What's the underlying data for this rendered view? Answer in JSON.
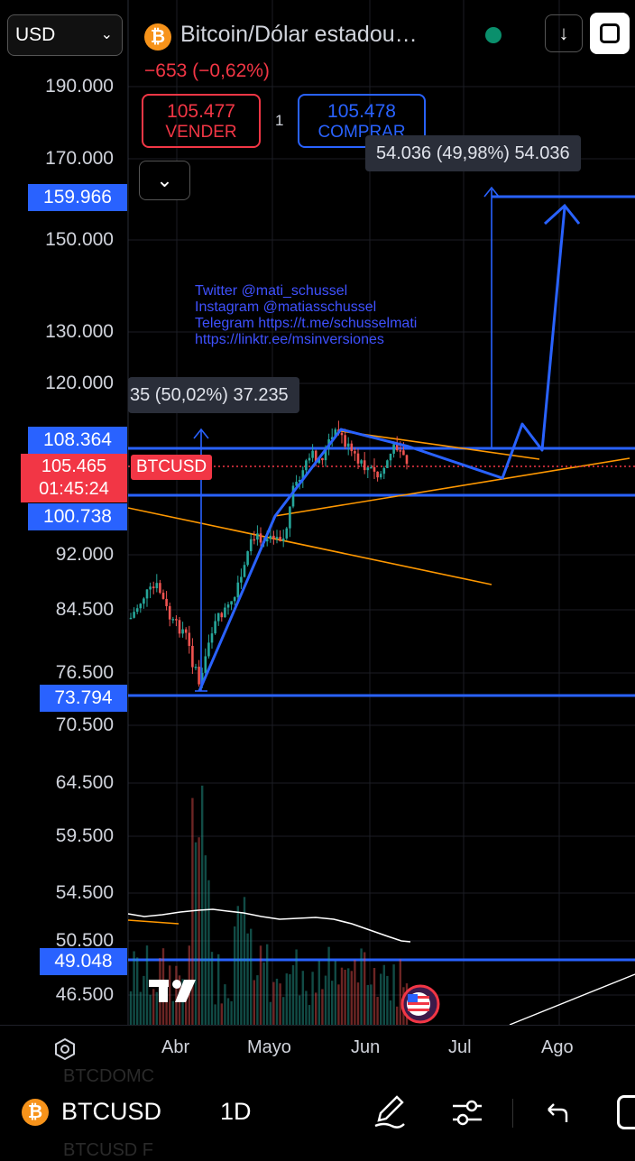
{
  "header": {
    "currency": "USD",
    "symbol_title": "Bitcoin/Dólar estadou…",
    "change": "−653 (−0,62%)",
    "sell": {
      "price": "105.477",
      "label": "VENDER"
    },
    "spread": "1",
    "buy": {
      "price": "105.478",
      "label": "COMPRAR"
    }
  },
  "price_axis": [
    "190.000",
    "170.000",
    "150.000",
    "130.000",
    "120.000",
    "92.000",
    "84.500",
    "76.500",
    "70.500",
    "64.500",
    "59.500",
    "54.500",
    "50.500",
    "46.500"
  ],
  "price_tags": {
    "t1": "159.966",
    "t2": "108.364",
    "t3": "100.738",
    "t4": "73.794",
    "t5": "49.048",
    "current_price": "105.465",
    "countdown": "01:45:24",
    "symbol_label": "BTCUSD"
  },
  "measure_labels": {
    "left": "35 (50,02%) 37.235",
    "right": "54.036 (49,98%) 54.036"
  },
  "social": {
    "line1": "Twitter @mati_schussel",
    "line2": "Instagram @matiasschussel",
    "line3": "Telegram https://t.me/schusselmati",
    "line4": "https://linktr.ee/msinversiones"
  },
  "time_axis": [
    "Abr",
    "Mayo",
    "Jun",
    "Jul",
    "Ago"
  ],
  "bottom_bar": {
    "symbol": "BTCUSD",
    "interval": "1D",
    "faded_top": "BTCDOMC",
    "faded_bottom": "BTCUSD F"
  },
  "colors": {
    "accent_blue": "#2962ff",
    "sell_red": "#f23645",
    "orange_line": "#ff9800"
  },
  "icons": [
    "bitcoin-icon",
    "status-dot-icon",
    "download-icon",
    "fullscreen-icon",
    "chevron-down-icon",
    "settings-icon",
    "pencil-icon",
    "sliders-icon",
    "undo-icon",
    "tradingview-logo-icon",
    "us-flag-icon"
  ]
}
